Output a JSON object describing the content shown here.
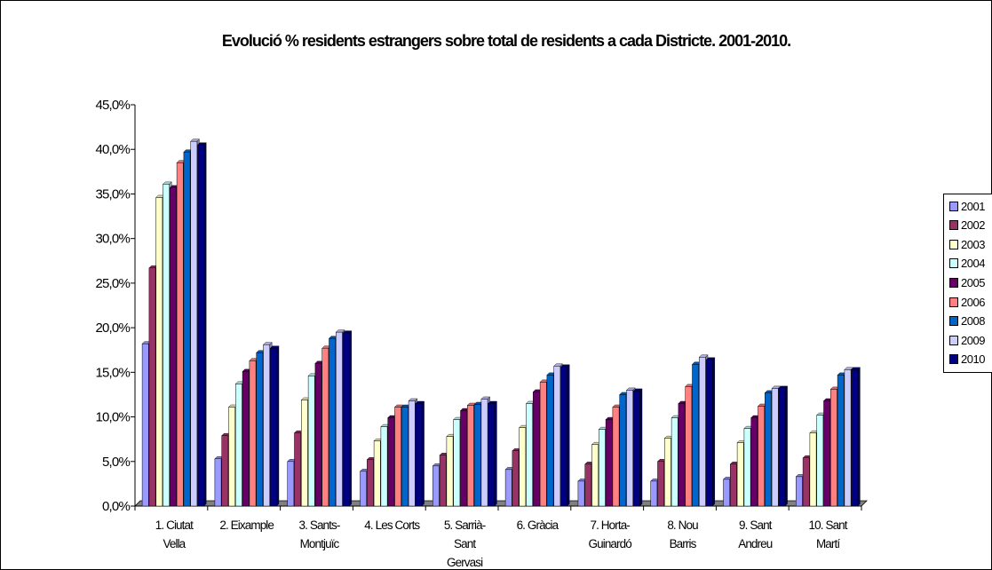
{
  "chart_data": {
    "type": "bar",
    "title": "Evolució % residents estrangers sobre total de residents a cada Districte. 2001-2010.",
    "categories": [
      [
        "1. Ciutat",
        "Vella"
      ],
      [
        "2. Eixample"
      ],
      [
        "3. Sants-",
        "Montjuïc"
      ],
      [
        "4. Les Corts"
      ],
      [
        "5. Sarrià-",
        "Sant",
        "Gervasi"
      ],
      [
        "6. Gràcia"
      ],
      [
        "7. Horta-",
        "Guinardó"
      ],
      [
        "8. Nou",
        "Barris"
      ],
      [
        "9. Sant",
        "Andreu"
      ],
      [
        "10. Sant",
        "Martí"
      ]
    ],
    "ylim": [
      0,
      45
    ],
    "yticks": [
      "0,0%",
      "5,0%",
      "10,0%",
      "15,0%",
      "20,0%",
      "25,0%",
      "30,0%",
      "35,0%",
      "40,0%",
      "45,0%"
    ],
    "legend_position": "right",
    "series": [
      {
        "name": "2001",
        "color": "#9999ff",
        "values": [
          18.2,
          5.3,
          5.0,
          3.9,
          4.5,
          4.1,
          2.8,
          2.8,
          3.0,
          3.3
        ]
      },
      {
        "name": "2002",
        "color": "#993366",
        "values": [
          26.7,
          7.9,
          8.2,
          5.2,
          5.7,
          6.2,
          4.7,
          5.0,
          4.7,
          5.4
        ]
      },
      {
        "name": "2003",
        "color": "#ffffcc",
        "values": [
          34.6,
          11.1,
          11.9,
          7.3,
          7.8,
          8.8,
          6.9,
          7.6,
          7.1,
          8.2
        ]
      },
      {
        "name": "2004",
        "color": "#ccffff",
        "values": [
          36.1,
          13.7,
          14.6,
          8.9,
          9.7,
          11.5,
          8.6,
          9.9,
          8.7,
          10.2
        ]
      },
      {
        "name": "2005",
        "color": "#660066",
        "values": [
          35.7,
          15.1,
          16.0,
          9.9,
          10.7,
          12.8,
          9.7,
          11.5,
          9.9,
          11.8
        ]
      },
      {
        "name": "2006",
        "color": "#ff8080",
        "values": [
          38.5,
          16.3,
          17.7,
          11.1,
          11.3,
          13.9,
          11.1,
          13.4,
          11.2,
          13.1
        ]
      },
      {
        "name": "2008",
        "color": "#0066cc",
        "values": [
          39.7,
          17.2,
          18.8,
          11.1,
          11.4,
          14.7,
          12.5,
          15.9,
          12.7,
          14.7
        ]
      },
      {
        "name": "2009",
        "color": "#ccccff",
        "values": [
          40.9,
          18.1,
          19.5,
          11.8,
          12.0,
          15.7,
          13.0,
          16.7,
          13.2,
          15.3
        ]
      },
      {
        "name": "2010",
        "color": "#000080",
        "values": [
          40.5,
          17.7,
          19.4,
          11.5,
          11.5,
          15.6,
          12.9,
          16.4,
          13.2,
          15.3
        ]
      }
    ]
  }
}
